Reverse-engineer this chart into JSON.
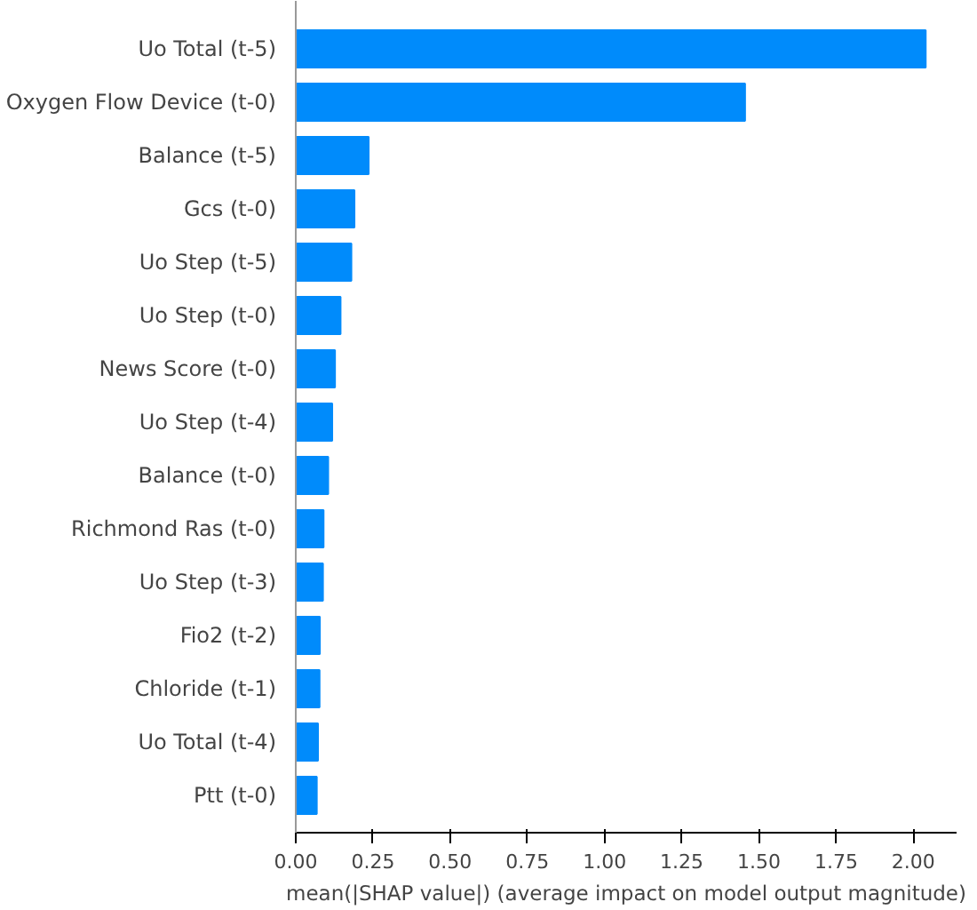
{
  "chart_data": {
    "type": "bar",
    "orientation": "horizontal",
    "xlabel": "mean(|SHAP value|) (average impact on model output magnitude)",
    "categories": [
      "Uo Total (t-5)",
      "Oxygen Flow Device (t-0)",
      "Balance (t-5)",
      "Gcs (t-0)",
      "Uo Step (t-5)",
      "Uo Step (t-0)",
      "News Score (t-0)",
      "Uo Step (t-4)",
      "Balance (t-0)",
      "Richmond Ras (t-0)",
      "Uo Step (t-3)",
      "Fio2 (t-2)",
      "Chloride (t-1)",
      "Uo Total (t-4)",
      "Ptt (t-0)"
    ],
    "values": [
      2.04,
      1.455,
      0.236,
      0.19,
      0.18,
      0.145,
      0.127,
      0.118,
      0.105,
      0.09,
      0.088,
      0.078,
      0.077,
      0.072,
      0.068
    ],
    "color": "#008bfb",
    "xlim": [
      0,
      2.14
    ],
    "xticks": [
      {
        "value": 0,
        "label": "0.00"
      },
      {
        "value": 0.25,
        "label": "0.25"
      },
      {
        "value": 0.5,
        "label": "0.50"
      },
      {
        "value": 0.75,
        "label": "0.75"
      },
      {
        "value": 1,
        "label": "1.00"
      },
      {
        "value": 1.25,
        "label": "1.25"
      },
      {
        "value": 1.5,
        "label": "1.50"
      },
      {
        "value": 1.75,
        "label": "1.75"
      },
      {
        "value": 2,
        "label": "2.00"
      }
    ],
    "grid": false
  }
}
